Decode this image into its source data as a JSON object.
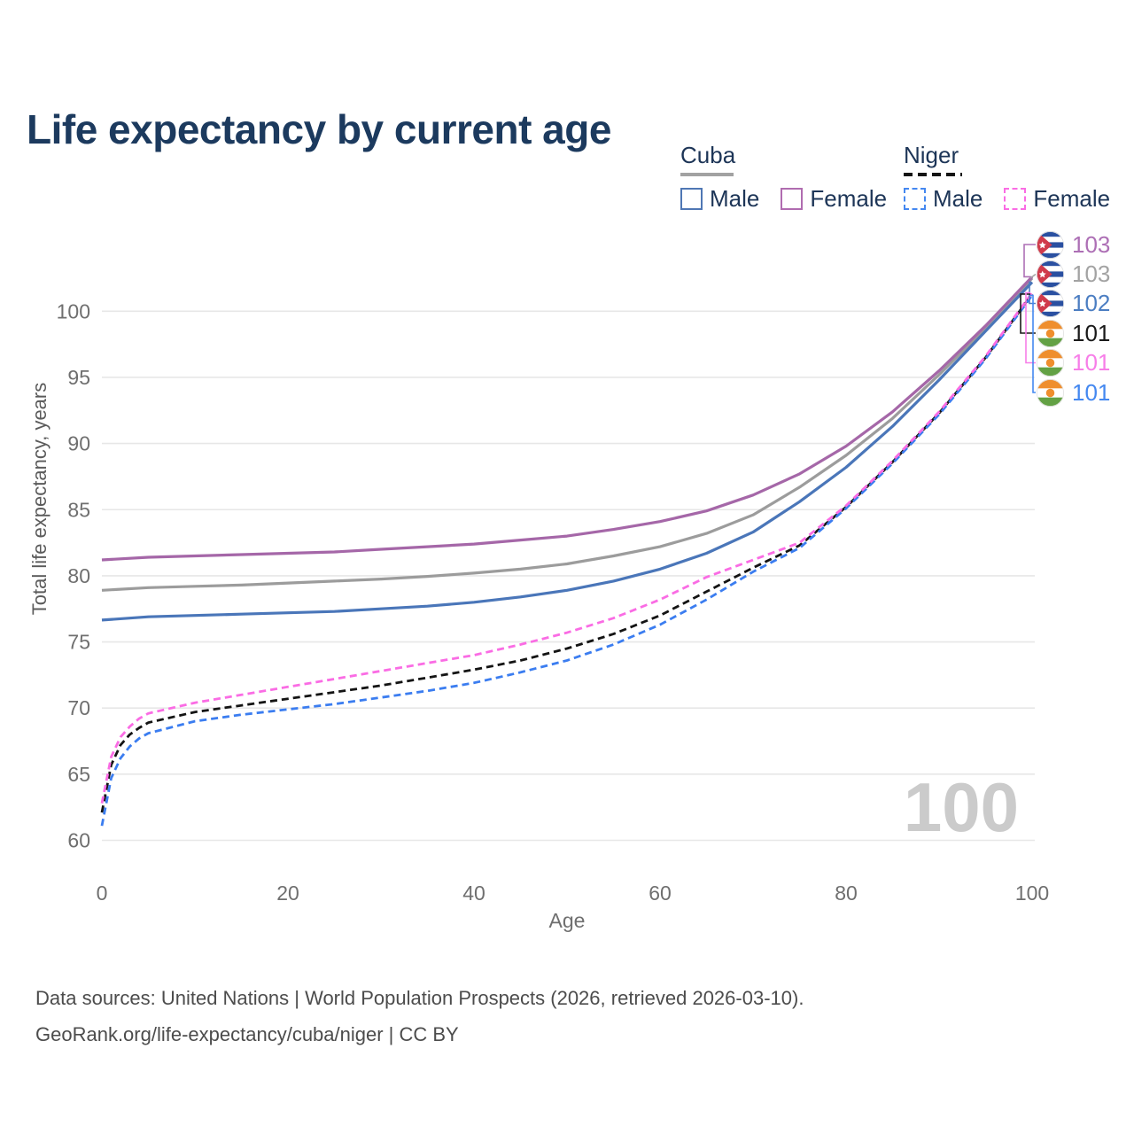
{
  "page": {
    "title": "Life expectancy by current age",
    "watermark_age": "100",
    "footer_line1": "Data sources: United Nations | World Population Prospects (2026, retrieved 2026-03-10).",
    "footer_line2": "GeoRank.org/life-expectancy/cuba/niger | CC BY"
  },
  "legend": {
    "groups": [
      {
        "name": "Cuba",
        "underline": "solid",
        "underline_color": "#a2a2a2",
        "items": [
          {
            "label": "Male",
            "color": "#4f77b4",
            "dashed": false
          },
          {
            "label": "Female",
            "color": "#b06cb0",
            "dashed": false
          }
        ]
      },
      {
        "name": "Niger",
        "underline": "dashed",
        "underline_color": "#141414",
        "items": [
          {
            "label": "Male",
            "color": "#4488f0",
            "dashed": true
          },
          {
            "label": "Female",
            "color": "#fa6ce4",
            "dashed": true
          }
        ]
      }
    ]
  },
  "chart_data": {
    "type": "line",
    "title": "Life expectancy by current age",
    "xlabel": "Age",
    "ylabel": "Total life expectancy, years",
    "xlim": [
      0,
      100
    ],
    "ylim": [
      60,
      103
    ],
    "xticks": [
      0,
      20,
      40,
      60,
      80,
      100
    ],
    "yticks": [
      60,
      65,
      70,
      75,
      80,
      85,
      90,
      95,
      100
    ],
    "grid": "horizontal",
    "legend_position": "top-right",
    "gridline_color": "#e7e7e7",
    "tick_color": "#6f6f6f",
    "series": [
      {
        "name": "cuba_both",
        "country": "Cuba",
        "sex": "Both",
        "color": "#9c9c9c",
        "dashed": false,
        "x": [
          0,
          5,
          10,
          15,
          20,
          25,
          30,
          35,
          40,
          45,
          50,
          55,
          60,
          65,
          70,
          75,
          80,
          85,
          90,
          95,
          100
        ],
        "y": [
          78.9,
          79.1,
          79.2,
          79.3,
          79.45,
          79.6,
          79.75,
          79.95,
          80.2,
          80.5,
          80.9,
          81.5,
          82.2,
          83.2,
          84.6,
          86.7,
          89.1,
          91.9,
          95.2,
          98.7,
          102.5
        ]
      },
      {
        "name": "cuba_female",
        "country": "Cuba",
        "sex": "Female",
        "color": "#a567a8",
        "dashed": false,
        "x": [
          0,
          5,
          10,
          15,
          20,
          25,
          30,
          35,
          40,
          45,
          50,
          55,
          60,
          65,
          70,
          75,
          80,
          85,
          90,
          95,
          100
        ],
        "y": [
          81.2,
          81.4,
          81.5,
          81.6,
          81.7,
          81.8,
          82.0,
          82.2,
          82.4,
          82.7,
          83.0,
          83.5,
          84.1,
          84.9,
          86.1,
          87.7,
          89.8,
          92.4,
          95.5,
          98.9,
          102.6
        ]
      },
      {
        "name": "cuba_male",
        "country": "Cuba",
        "sex": "Male",
        "color": "#4a76b9",
        "dashed": false,
        "x": [
          0,
          5,
          10,
          15,
          20,
          25,
          30,
          35,
          40,
          45,
          50,
          55,
          60,
          65,
          70,
          75,
          80,
          85,
          90,
          95,
          100
        ],
        "y": [
          76.65,
          76.9,
          77.0,
          77.1,
          77.2,
          77.3,
          77.5,
          77.7,
          78.0,
          78.4,
          78.9,
          79.6,
          80.5,
          81.7,
          83.3,
          85.6,
          88.2,
          91.3,
          94.8,
          98.5,
          102.2
        ]
      },
      {
        "name": "niger_both",
        "country": "Niger",
        "sex": "Both",
        "color": "#141414",
        "dashed": true,
        "x": [
          0,
          1,
          2,
          3,
          4,
          5,
          10,
          15,
          20,
          25,
          30,
          35,
          40,
          45,
          50,
          55,
          60,
          65,
          70,
          75,
          80,
          85,
          90,
          95,
          100
        ],
        "y": [
          62.1,
          65.7,
          67.2,
          68.0,
          68.5,
          68.9,
          69.7,
          70.2,
          70.7,
          71.2,
          71.7,
          72.3,
          72.9,
          73.6,
          74.5,
          75.6,
          77.0,
          78.8,
          80.6,
          82.3,
          85.2,
          88.6,
          92.3,
          96.5,
          101.3
        ]
      },
      {
        "name": "niger_male",
        "country": "Niger",
        "sex": "Male",
        "color": "#3b7df0",
        "dashed": true,
        "x": [
          0,
          1,
          2,
          3,
          4,
          5,
          10,
          15,
          20,
          25,
          30,
          35,
          40,
          45,
          50,
          55,
          60,
          65,
          70,
          75,
          80,
          85,
          90,
          95,
          100
        ],
        "y": [
          61.1,
          64.7,
          66.2,
          67.1,
          67.7,
          68.1,
          69.0,
          69.5,
          69.9,
          70.3,
          70.8,
          71.3,
          71.9,
          72.7,
          73.6,
          74.8,
          76.3,
          78.2,
          80.3,
          82.1,
          85.1,
          88.5,
          92.2,
          96.4,
          101.2
        ]
      },
      {
        "name": "niger_female",
        "country": "Niger",
        "sex": "Female",
        "color": "#fa6ce4",
        "dashed": true,
        "x": [
          0,
          1,
          2,
          3,
          4,
          5,
          10,
          15,
          20,
          25,
          30,
          35,
          40,
          45,
          50,
          55,
          60,
          65,
          70,
          75,
          80,
          85,
          90,
          95,
          100
        ],
        "y": [
          62.8,
          66.3,
          67.8,
          68.6,
          69.2,
          69.6,
          70.4,
          71.0,
          71.6,
          72.2,
          72.8,
          73.4,
          74.0,
          74.8,
          75.7,
          76.8,
          78.2,
          79.9,
          81.2,
          82.5,
          85.3,
          88.7,
          92.4,
          96.6,
          101.4
        ]
      }
    ],
    "end_labels": [
      {
        "series": "cuba_female",
        "flag": "cuba",
        "value": "103",
        "color": "#ad6fb5"
      },
      {
        "series": "cuba_both",
        "flag": "cuba",
        "value": "103",
        "color": "#a3a3a3"
      },
      {
        "series": "cuba_male",
        "flag": "cuba",
        "value": "102",
        "color": "#4c7ec2"
      },
      {
        "series": "niger_both",
        "flag": "niger",
        "value": "101",
        "color": "#1a1a1a"
      },
      {
        "series": "niger_female",
        "flag": "niger",
        "value": "101",
        "color": "#f77ee8"
      },
      {
        "series": "niger_male",
        "flag": "niger",
        "value": "101",
        "color": "#4488f0"
      }
    ],
    "flag_colors": {
      "cuba_blue": "#2a50a1",
      "cuba_red": "#d03a4b",
      "cuba_white": "#ffffff",
      "niger_orange": "#ef8e2d",
      "niger_green": "#63a144",
      "niger_white": "#ffffff"
    }
  }
}
